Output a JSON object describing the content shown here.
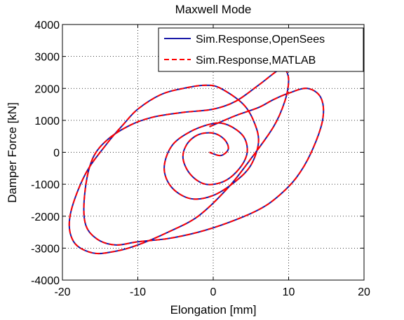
{
  "chart_data": {
    "type": "line",
    "title": "Maxwell Mode",
    "xlabel": "Elongation [mm]",
    "ylabel": "Damper Force [kN]",
    "xlim": [
      -20,
      20
    ],
    "ylim": [
      -4000,
      4000
    ],
    "xticks": [
      -20,
      -10,
      0,
      10,
      20
    ],
    "yticks": [
      -4000,
      -3000,
      -2000,
      -1000,
      0,
      1000,
      2000,
      3000,
      4000
    ],
    "xtick_labels": [
      "-20",
      "-10",
      "0",
      "10",
      "20"
    ],
    "ytick_labels": [
      "-4000",
      "-3000",
      "-2000",
      "-1000",
      "0",
      "1000",
      "2000",
      "3000",
      "4000"
    ],
    "grid": true,
    "legend_position": "top-right",
    "colors": {
      "opensees": "#1a1aa8",
      "matlab": "#ff0000"
    },
    "series": [
      {
        "name": "Sim.Response,OpenSees",
        "style": "solid",
        "x": [
          -0.5,
          3,
          6,
          8,
          10,
          12.5,
          14.3,
          14.5,
          13,
          11,
          8.5,
          6,
          2,
          -2,
          -6,
          -10,
          -13,
          -15.5,
          -17,
          -17,
          -16,
          -14,
          -11,
          -8,
          -4,
          0,
          3,
          6,
          8.5,
          9.5,
          10,
          9.5,
          8,
          5,
          2,
          -2,
          -6,
          -10,
          -13,
          -16,
          -18.5,
          -19,
          -17,
          -14,
          -12,
          -10,
          -7,
          -4,
          -1,
          1,
          4,
          5.5,
          6,
          5,
          3,
          0,
          -3,
          -5.5,
          -6.5,
          -5.5,
          -3,
          0,
          2,
          4,
          4.5,
          3.5,
          1.5,
          -1,
          -3,
          -4,
          -3.5,
          -2,
          0,
          1.5,
          2,
          1,
          -0.5
        ],
        "y": [
          800,
          1150,
          1400,
          1650,
          1850,
          2000,
          1700,
          1000,
          0,
          -800,
          -1400,
          -1800,
          -2200,
          -2500,
          -2700,
          -2800,
          -2900,
          -2700,
          -2200,
          -1200,
          -200,
          400,
          850,
          1100,
          1250,
          1350,
          1600,
          2100,
          2550,
          2600,
          2250,
          1600,
          800,
          -200,
          -1100,
          -2000,
          -2500,
          -2900,
          -3100,
          -3150,
          -2800,
          -2000,
          -700,
          300,
          850,
          1350,
          1800,
          2000,
          2100,
          2000,
          1500,
          900,
          300,
          -400,
          -900,
          -1350,
          -1450,
          -1100,
          -500,
          200,
          650,
          900,
          850,
          500,
          0,
          -500,
          -900,
          -1000,
          -700,
          -200,
          250,
          550,
          600,
          400,
          100,
          -100,
          0
        ]
      },
      {
        "name": "Sim.Response,MATLAB",
        "style": "dashed",
        "x": [
          -0.5,
          3,
          6,
          8,
          10,
          12.5,
          14.3,
          14.5,
          13,
          11,
          8.5,
          6,
          2,
          -2,
          -6,
          -10,
          -13,
          -15.5,
          -17,
          -17,
          -16,
          -14,
          -11,
          -8,
          -4,
          0,
          3,
          6,
          8.5,
          9.5,
          10,
          9.5,
          8,
          5,
          2,
          -2,
          -6,
          -10,
          -13,
          -16,
          -18.5,
          -19,
          -17,
          -14,
          -12,
          -10,
          -7,
          -4,
          -1,
          1,
          4,
          5.5,
          6,
          5,
          3,
          0,
          -3,
          -5.5,
          -6.5,
          -5.5,
          -3,
          0,
          2,
          4,
          4.5,
          3.5,
          1.5,
          -1,
          -3,
          -4,
          -3.5,
          -2,
          0,
          1.5,
          2,
          1,
          -0.5
        ],
        "y": [
          800,
          1150,
          1400,
          1650,
          1850,
          2000,
          1700,
          1000,
          0,
          -800,
          -1400,
          -1800,
          -2200,
          -2500,
          -2700,
          -2800,
          -2900,
          -2700,
          -2200,
          -1200,
          -200,
          400,
          850,
          1100,
          1250,
          1350,
          1600,
          2100,
          2550,
          2600,
          2250,
          1600,
          800,
          -200,
          -1100,
          -2000,
          -2500,
          -2900,
          -3100,
          -3150,
          -2800,
          -2000,
          -700,
          300,
          850,
          1350,
          1800,
          2000,
          2100,
          2000,
          1500,
          900,
          300,
          -400,
          -900,
          -1350,
          -1450,
          -1100,
          -500,
          200,
          650,
          900,
          850,
          500,
          0,
          -500,
          -900,
          -1000,
          -700,
          -200,
          250,
          550,
          600,
          400,
          100,
          -100,
          0
        ]
      }
    ]
  }
}
